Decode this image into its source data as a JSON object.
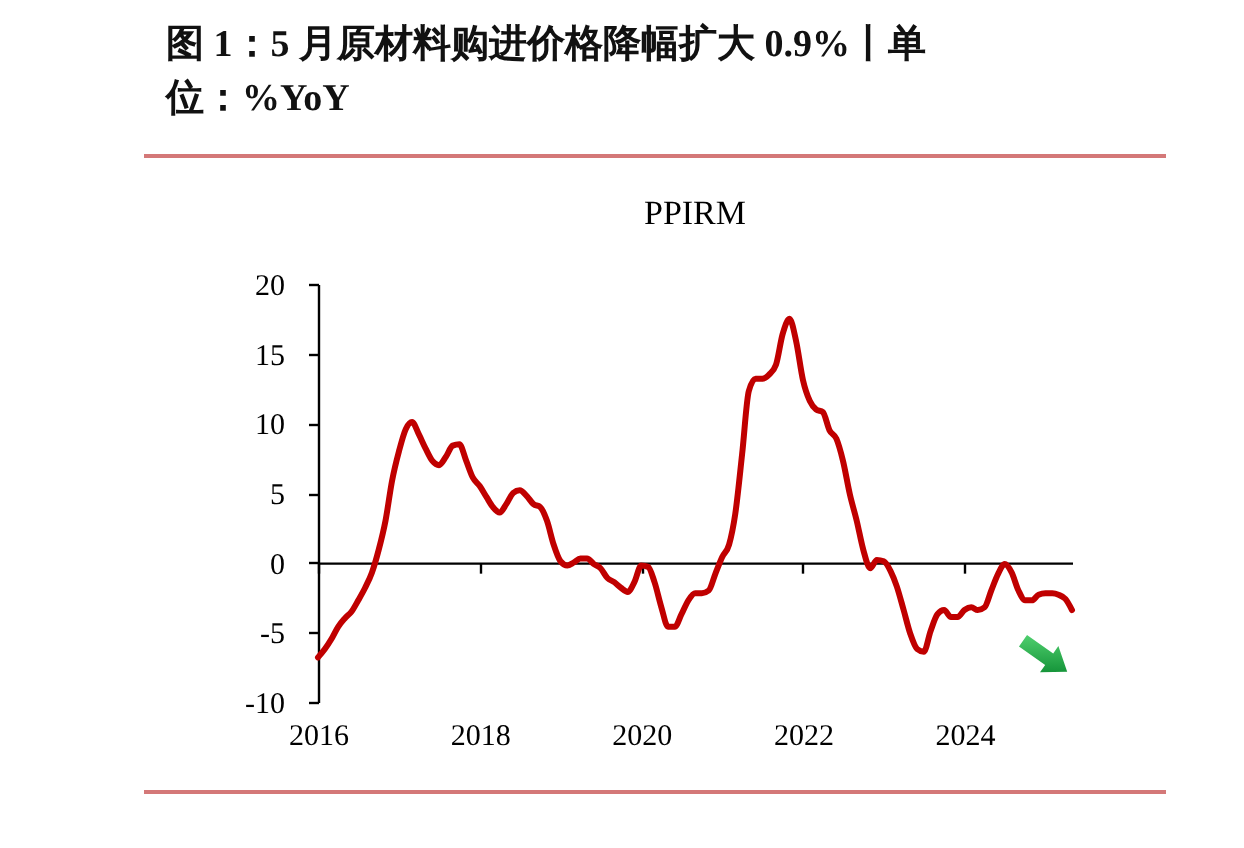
{
  "chart_data": {
    "type": "line",
    "title": "图 1：5 月原材料购进价格降幅扩大 0.9%丨单位：%YoY",
    "subtitle": "PPIRM",
    "x": [
      "2016-01",
      "2016-02",
      "2016-03",
      "2016-04",
      "2016-05",
      "2016-06",
      "2016-07",
      "2016-08",
      "2016-09",
      "2016-10",
      "2016-11",
      "2016-12",
      "2017-01",
      "2017-02",
      "2017-03",
      "2017-04",
      "2017-05",
      "2017-06",
      "2017-07",
      "2017-08",
      "2017-09",
      "2017-10",
      "2017-11",
      "2017-12",
      "2018-01",
      "2018-02",
      "2018-03",
      "2018-04",
      "2018-05",
      "2018-06",
      "2018-07",
      "2018-08",
      "2018-09",
      "2018-10",
      "2018-11",
      "2018-12",
      "2019-01",
      "2019-02",
      "2019-03",
      "2019-04",
      "2019-05",
      "2019-06",
      "2019-07",
      "2019-08",
      "2019-09",
      "2019-10",
      "2019-11",
      "2019-12",
      "2020-01",
      "2020-02",
      "2020-03",
      "2020-04",
      "2020-05",
      "2020-06",
      "2020-07",
      "2020-08",
      "2020-09",
      "2020-10",
      "2020-11",
      "2020-12",
      "2021-01",
      "2021-02",
      "2021-03",
      "2021-04",
      "2021-05",
      "2021-06",
      "2021-07",
      "2021-08",
      "2021-09",
      "2021-10",
      "2021-11",
      "2021-12",
      "2022-01",
      "2022-02",
      "2022-03",
      "2022-04",
      "2022-05",
      "2022-06",
      "2022-07",
      "2022-08",
      "2022-09",
      "2022-10",
      "2022-11",
      "2022-12",
      "2023-01",
      "2023-02",
      "2023-03",
      "2023-04",
      "2023-05",
      "2023-06",
      "2023-07",
      "2023-08",
      "2023-09",
      "2023-10",
      "2023-11",
      "2023-12",
      "2024-01",
      "2024-02",
      "2024-03",
      "2024-04",
      "2024-05",
      "2024-06",
      "2024-07",
      "2024-08",
      "2024-09",
      "2024-10",
      "2024-11",
      "2024-12",
      "2025-01",
      "2025-02",
      "2025-03",
      "2025-04",
      "2025-05"
    ],
    "series": [
      {
        "color": "#c00000",
        "values": [
          -6.8,
          -6.2,
          -5.5,
          -4.6,
          -4.0,
          -3.5,
          -2.7,
          -1.8,
          -0.7,
          0.9,
          3.0,
          5.9,
          8.0,
          9.6,
          10.1,
          9.2,
          8.2,
          7.3,
          7.0,
          7.6,
          8.4,
          8.5,
          7.3,
          6.1,
          5.5,
          4.7,
          4.0,
          3.6,
          4.2,
          5.0,
          5.2,
          4.8,
          4.2,
          4.0,
          3.0,
          1.3,
          0.1,
          -0.2,
          0.0,
          0.3,
          0.3,
          -0.1,
          -0.4,
          -1.1,
          -1.4,
          -1.8,
          -2.1,
          -1.4,
          -0.2,
          -0.3,
          -1.4,
          -3.2,
          -4.6,
          -4.6,
          -3.7,
          -2.7,
          -2.2,
          -2.2,
          -2.0,
          -0.8,
          0.4,
          1.3,
          3.5,
          7.8,
          12.3,
          13.2,
          13.2,
          13.5,
          14.2,
          16.4,
          17.5,
          15.9,
          13.1,
          11.6,
          11.0,
          10.8,
          9.5,
          8.9,
          7.3,
          4.9,
          3.0,
          0.9,
          -0.4,
          0.2,
          0.1,
          -0.6,
          -1.7,
          -3.4,
          -5.1,
          -6.2,
          -6.4,
          -4.9,
          -3.7,
          -3.4,
          -3.9,
          -3.9,
          -3.4,
          -3.2,
          -3.4,
          -3.2,
          -2.0,
          -0.8,
          -0.1,
          -0.7,
          -2.0,
          -2.7,
          -2.7,
          -2.3,
          -2.2,
          -2.2,
          -2.3,
          -2.6,
          -3.4
        ]
      }
    ],
    "xlim": [
      "2016-01",
      "2025-05"
    ],
    "xticks": [
      "2016",
      "2018",
      "2020",
      "2022",
      "2024"
    ],
    "ylim": [
      -10,
      20
    ],
    "yticks": [
      -10,
      -5,
      0,
      5,
      10,
      15,
      20
    ],
    "line_style": "solid"
  }
}
